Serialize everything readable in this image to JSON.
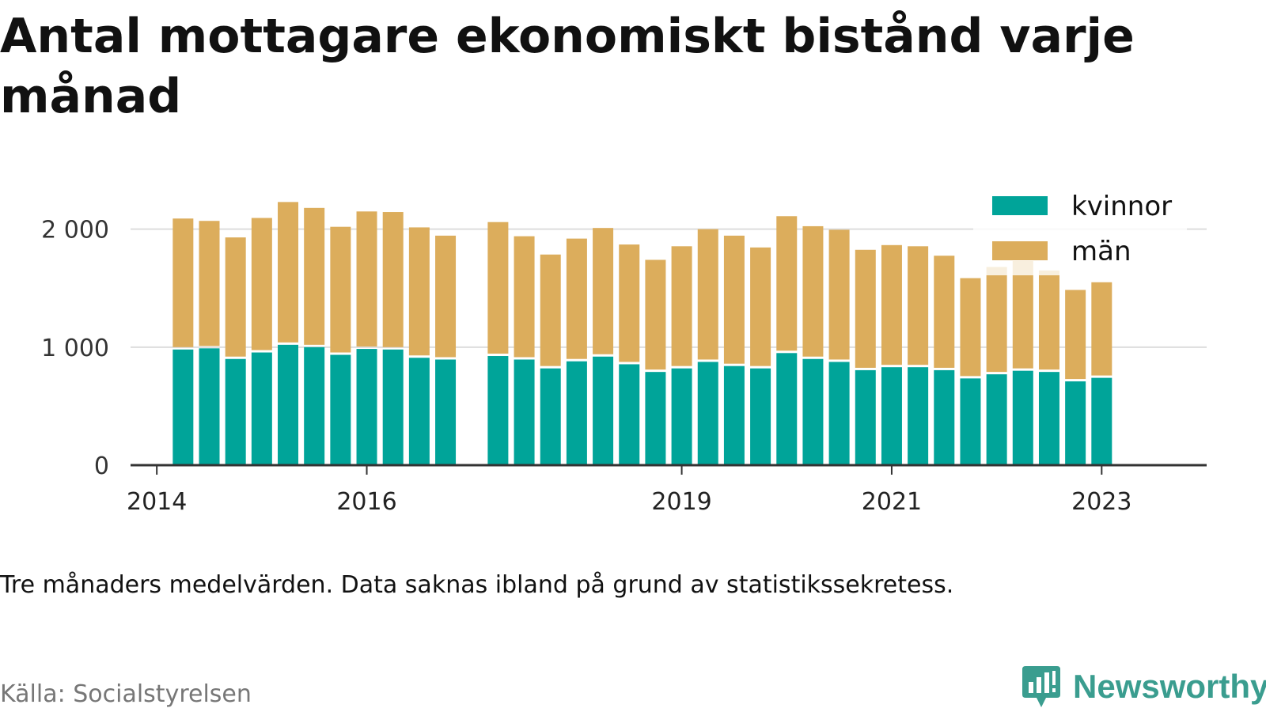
{
  "title": "Antal mottagare ekonomiskt bistånd varje månad",
  "note": "Tre månaders medelvärden. Data saknas ibland på grund av statistikssekretess.",
  "source": "Källa: Socialstyrelsen",
  "brand": {
    "name": "Newsworthy",
    "color": "#3a9d8f"
  },
  "chart_data": {
    "type": "bar",
    "stacked": true,
    "ylim": [
      0,
      2400
    ],
    "yticks": [
      0,
      1000,
      2000
    ],
    "ytick_labels": [
      "0",
      "1 000",
      "2 000"
    ],
    "xlim": [
      2013.75,
      2024.0
    ],
    "xticks": [
      2014,
      2016,
      2019,
      2021,
      2023
    ],
    "xtick_labels": [
      "2014",
      "2016",
      "2019",
      "2021",
      "2023"
    ],
    "grid": true,
    "legend": "top-right",
    "colors": {
      "kvinnor": "#00a499",
      "man": "#dcad5c"
    },
    "x": [
      2014.25,
      2014.5,
      2014.75,
      2015.0,
      2015.25,
      2015.5,
      2015.75,
      2016.0,
      2016.25,
      2016.5,
      2016.75,
      2017.25,
      2017.5,
      2017.75,
      2018.0,
      2018.25,
      2018.5,
      2018.75,
      2019.0,
      2019.25,
      2019.5,
      2019.75,
      2020.0,
      2020.25,
      2020.5,
      2020.75,
      2021.0,
      2021.25,
      2021.5,
      2021.75,
      2022.0,
      2022.25,
      2022.5,
      2022.75,
      2023.0
    ],
    "series": [
      {
        "name": "kvinnor",
        "color": "#00a499",
        "values": [
          980,
          990,
          900,
          955,
          1020,
          1000,
          935,
          985,
          980,
          910,
          895,
          925,
          895,
          820,
          880,
          920,
          855,
          790,
          820,
          875,
          840,
          820,
          950,
          900,
          875,
          805,
          830,
          830,
          805,
          735,
          770,
          800,
          790,
          710,
          740
        ]
      },
      {
        "name": "män",
        "color": "#dcad5c",
        "values": [
          1110,
          1080,
          1030,
          1140,
          1210,
          1180,
          1085,
          1165,
          1165,
          1105,
          1050,
          1135,
          1045,
          965,
          1040,
          1090,
          1015,
          950,
          1035,
          1125,
          1105,
          1025,
          1160,
          1125,
          1120,
          1020,
          1035,
          1025,
          970,
          850,
          910,
          930,
          860,
          775,
          810
        ]
      }
    ]
  }
}
